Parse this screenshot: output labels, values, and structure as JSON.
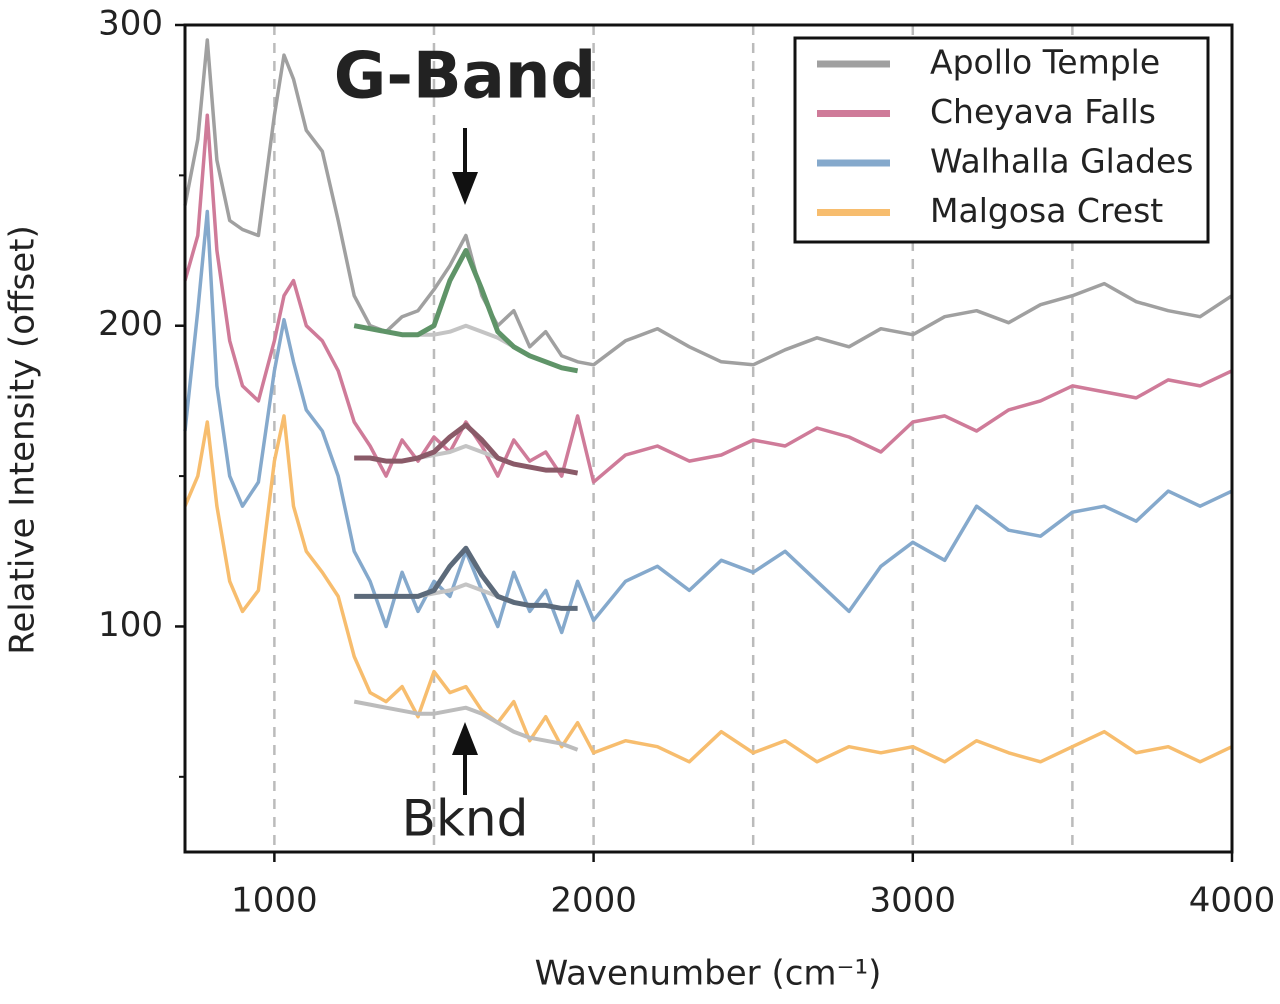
{
  "chart_data": {
    "type": "line",
    "xlabel": "Wavenumber (cm⁻¹)",
    "ylabel": "Relative Intensity (offset)",
    "xlim": [
      720,
      4000
    ],
    "ylim": [
      25,
      300
    ],
    "xticks": [
      1000,
      2000,
      3000,
      4000
    ],
    "yticks": [
      100,
      200,
      300
    ],
    "yminorticks": [
      50,
      150,
      250
    ],
    "xgrid": [
      1000,
      1500,
      2000,
      2500,
      3000,
      3500
    ],
    "legend": "upper right",
    "x": [
      720,
      760,
      790,
      820,
      860,
      900,
      950,
      1000,
      1030,
      1060,
      1100,
      1150,
      1200,
      1250,
      1300,
      1350,
      1400,
      1450,
      1500,
      1550,
      1600,
      1650,
      1700,
      1750,
      1800,
      1850,
      1900,
      1950,
      2000,
      2100,
      2200,
      2300,
      2400,
      2500,
      2600,
      2700,
      2800,
      2900,
      3000,
      3100,
      3200,
      3300,
      3400,
      3500,
      3600,
      3700,
      3800,
      3900,
      4000
    ],
    "series": [
      {
        "name": "Apollo Temple",
        "color": "#a0a0a0",
        "values": [
          240,
          262,
          295,
          255,
          235,
          232,
          230,
          270,
          290,
          282,
          265,
          258,
          235,
          210,
          200,
          198,
          203,
          205,
          212,
          220,
          230,
          210,
          200,
          205,
          193,
          198,
          190,
          188,
          187,
          195,
          199,
          193,
          188,
          187,
          192,
          196,
          193,
          199,
          197,
          203,
          205,
          201,
          207,
          210,
          214,
          208,
          205,
          203,
          210
        ]
      },
      {
        "name": "Cheyava Falls",
        "color": "#cf7b99",
        "values": [
          215,
          230,
          270,
          225,
          195,
          180,
          175,
          195,
          210,
          215,
          200,
          195,
          185,
          168,
          160,
          150,
          162,
          155,
          163,
          158,
          168,
          160,
          150,
          162,
          155,
          158,
          150,
          170,
          148,
          157,
          160,
          155,
          157,
          162,
          160,
          166,
          163,
          158,
          168,
          170,
          165,
          172,
          175,
          180,
          178,
          176,
          182,
          180,
          185
        ]
      },
      {
        "name": "Walhalla Glades",
        "color": "#85a9cc",
        "values": [
          165,
          205,
          238,
          180,
          150,
          140,
          148,
          185,
          202,
          188,
          172,
          165,
          150,
          125,
          115,
          100,
          118,
          105,
          115,
          110,
          125,
          112,
          100,
          118,
          105,
          112,
          98,
          115,
          102,
          115,
          120,
          112,
          122,
          118,
          125,
          115,
          105,
          120,
          128,
          122,
          140,
          132,
          130,
          138,
          140,
          135,
          145,
          140,
          145
        ]
      },
      {
        "name": "Malgosa Crest",
        "color": "#f7bd6e",
        "values": [
          140,
          150,
          168,
          140,
          115,
          105,
          112,
          155,
          170,
          140,
          125,
          118,
          110,
          90,
          78,
          75,
          80,
          70,
          85,
          78,
          80,
          72,
          68,
          75,
          62,
          70,
          60,
          68,
          58,
          62,
          60,
          55,
          65,
          58,
          62,
          55,
          60,
          58,
          60,
          55,
          62,
          58,
          55,
          60,
          65,
          58,
          60,
          55,
          60
        ]
      }
    ],
    "fit_x": [
      1250,
      1300,
      1350,
      1400,
      1450,
      1500,
      1550,
      1600,
      1650,
      1700,
      1750,
      1800,
      1850,
      1900,
      1950
    ],
    "backgrounds": [
      {
        "color": "#c4c4c4",
        "values": [
          200,
          199,
          198,
          197,
          197,
          197,
          198,
          200,
          198,
          196,
          193,
          190,
          188,
          186,
          185
        ]
      },
      {
        "color": "#c4c4c4",
        "values": [
          156,
          156,
          155,
          155,
          156,
          157,
          158,
          160,
          158,
          156,
          154,
          153,
          152,
          152,
          151
        ]
      },
      {
        "color": "#c4c4c4",
        "values": [
          110,
          110,
          110,
          110,
          110,
          111,
          112,
          114,
          112,
          110,
          108,
          107,
          107,
          106,
          106
        ]
      },
      {
        "color": "#bcbcbc",
        "values": [
          75,
          74,
          73,
          72,
          71,
          71,
          72,
          73,
          71,
          68,
          65,
          63,
          62,
          61,
          59
        ]
      }
    ],
    "fits": [
      {
        "color": "#5f9468",
        "values": [
          200,
          199,
          198,
          197,
          197,
          200,
          215,
          225,
          212,
          198,
          193,
          190,
          188,
          186,
          185
        ]
      },
      {
        "color": "#8a5a68",
        "values": [
          156,
          156,
          155,
          155,
          156,
          158,
          163,
          167,
          162,
          156,
          154,
          153,
          152,
          152,
          151
        ]
      },
      {
        "color": "#5c6a7a",
        "values": [
          110,
          110,
          110,
          110,
          110,
          112,
          120,
          126,
          117,
          110,
          108,
          107,
          107,
          106,
          106
        ]
      }
    ],
    "annotations": [
      "G-Band",
      "Bknd"
    ]
  }
}
